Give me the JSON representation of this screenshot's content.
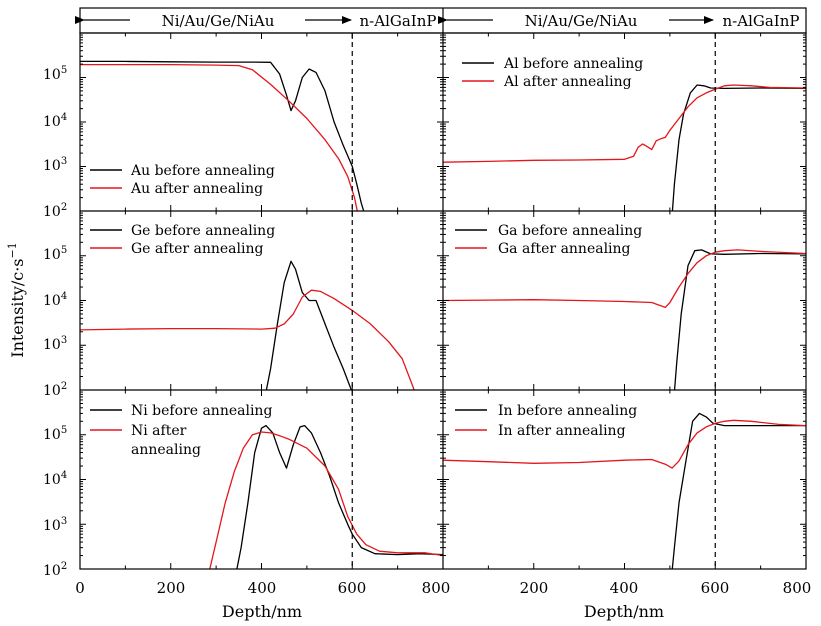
{
  "figure": {
    "ylabel": "Intensity/c·s",
    "ylabel_sup": "−1",
    "xlabel": "Depth/nm",
    "region_left": "Ni/Au/Ge/NiAu",
    "region_right": "n-AlGaInP"
  },
  "chart_data": [
    {
      "type": "line",
      "element": "Au",
      "yscale": "log",
      "xlim": [
        0,
        800
      ],
      "ylim": [
        100,
        1000000
      ],
      "legend_position": "bottom-left",
      "annotations": [
        {
          "type": "vline",
          "x": 600,
          "style": "dashed"
        }
      ],
      "series": [
        {
          "name": "Au before annealing",
          "color": "#000000",
          "points": [
            [
              0,
              230000
            ],
            [
              100,
              230000
            ],
            [
              200,
              225000
            ],
            [
              300,
              222000
            ],
            [
              380,
              222000
            ],
            [
              420,
              220000
            ],
            [
              440,
              120000
            ],
            [
              455,
              40000
            ],
            [
              465,
              18000
            ],
            [
              475,
              30000
            ],
            [
              490,
              100000
            ],
            [
              505,
              155000
            ],
            [
              520,
              130000
            ],
            [
              540,
              50000
            ],
            [
              560,
              10000
            ],
            [
              580,
              3000
            ],
            [
              600,
              1000
            ],
            [
              610,
              400
            ],
            [
              620,
              150
            ],
            [
              628,
              80
            ]
          ]
        },
        {
          "name": "Au after annealing",
          "color": "#e4161c",
          "points": [
            [
              0,
              195000
            ],
            [
              100,
              195000
            ],
            [
              200,
              195000
            ],
            [
              300,
              190000
            ],
            [
              350,
              185000
            ],
            [
              380,
              150000
            ],
            [
              420,
              70000
            ],
            [
              460,
              30000
            ],
            [
              500,
              12000
            ],
            [
              540,
              4000
            ],
            [
              570,
              1500
            ],
            [
              590,
              600
            ],
            [
              605,
              200
            ],
            [
              612,
              90
            ]
          ]
        }
      ]
    },
    {
      "type": "line",
      "element": "Al",
      "yscale": "log",
      "xlim": [
        0,
        800
      ],
      "ylim": [
        100,
        1000000
      ],
      "legend_position": "top-left",
      "annotations": [
        {
          "type": "vline",
          "x": 600,
          "style": "dashed"
        }
      ],
      "series": [
        {
          "name": "Al before annealing",
          "color": "#000000",
          "points": [
            [
              505,
              80
            ],
            [
              510,
              400
            ],
            [
              520,
              4000
            ],
            [
              530,
              15000
            ],
            [
              545,
              45000
            ],
            [
              560,
              68000
            ],
            [
              575,
              65000
            ],
            [
              590,
              58000
            ],
            [
              620,
              57000
            ],
            [
              700,
              58000
            ],
            [
              800,
              57000
            ]
          ]
        },
        {
          "name": "Al after annealing",
          "color": "#e4161c",
          "points": [
            [
              0,
              1250
            ],
            [
              100,
              1300
            ],
            [
              200,
              1380
            ],
            [
              300,
              1400
            ],
            [
              400,
              1450
            ],
            [
              420,
              1700
            ],
            [
              430,
              2700
            ],
            [
              440,
              3200
            ],
            [
              450,
              2800
            ],
            [
              460,
              2400
            ],
            [
              470,
              3800
            ],
            [
              480,
              4200
            ],
            [
              490,
              4500
            ],
            [
              500,
              6500
            ],
            [
              520,
              12000
            ],
            [
              540,
              22000
            ],
            [
              560,
              35000
            ],
            [
              580,
              45000
            ],
            [
              600,
              55000
            ],
            [
              620,
              65000
            ],
            [
              640,
              68000
            ],
            [
              680,
              65000
            ],
            [
              720,
              60000
            ],
            [
              800,
              58000
            ]
          ]
        }
      ]
    },
    {
      "type": "line",
      "element": "Ge",
      "yscale": "log",
      "xlim": [
        0,
        800
      ],
      "ylim": [
        100,
        1000000
      ],
      "legend_position": "top-left",
      "annotations": [
        {
          "type": "vline",
          "x": 600,
          "style": "dashed"
        }
      ],
      "series": [
        {
          "name": "Ge before annealing",
          "color": "#000000",
          "points": [
            [
              410,
              90
            ],
            [
              420,
              300
            ],
            [
              435,
              3000
            ],
            [
              450,
              25000
            ],
            [
              465,
              75000
            ],
            [
              475,
              50000
            ],
            [
              490,
              15000
            ],
            [
              505,
              10000
            ],
            [
              520,
              10000
            ],
            [
              540,
              3000
            ],
            [
              560,
              900
            ],
            [
              580,
              300
            ],
            [
              595,
              120
            ],
            [
              600,
              90
            ]
          ]
        },
        {
          "name": "Ge after annealing",
          "color": "#e4161c",
          "points": [
            [
              0,
              2200
            ],
            [
              100,
              2300
            ],
            [
              200,
              2350
            ],
            [
              300,
              2350
            ],
            [
              400,
              2300
            ],
            [
              430,
              2400
            ],
            [
              450,
              3000
            ],
            [
              470,
              5000
            ],
            [
              490,
              12000
            ],
            [
              510,
              17000
            ],
            [
              530,
              16000
            ],
            [
              560,
              11000
            ],
            [
              600,
              6000
            ],
            [
              640,
              3000
            ],
            [
              680,
              1200
            ],
            [
              710,
              500
            ],
            [
              730,
              150
            ],
            [
              738,
              90
            ]
          ]
        }
      ]
    },
    {
      "type": "line",
      "element": "Ga",
      "yscale": "log",
      "xlim": [
        0,
        800
      ],
      "ylim": [
        100,
        1000000
      ],
      "legend_position": "top-left",
      "annotations": [
        {
          "type": "vline",
          "x": 600,
          "style": "dashed"
        }
      ],
      "series": [
        {
          "name": "Ga before annealing",
          "color": "#000000",
          "points": [
            [
              510,
              90
            ],
            [
              515,
              400
            ],
            [
              525,
              5000
            ],
            [
              540,
              60000
            ],
            [
              555,
              130000
            ],
            [
              570,
              135000
            ],
            [
              590,
              110000
            ],
            [
              620,
              108000
            ],
            [
              700,
              112000
            ],
            [
              800,
              110000
            ]
          ]
        },
        {
          "name": "Ga after annealing",
          "color": "#e4161c",
          "points": [
            [
              0,
              10000
            ],
            [
              100,
              10200
            ],
            [
              200,
              10400
            ],
            [
              300,
              10000
            ],
            [
              400,
              9500
            ],
            [
              460,
              9000
            ],
            [
              490,
              7000
            ],
            [
              500,
              9000
            ],
            [
              520,
              20000
            ],
            [
              540,
              40000
            ],
            [
              560,
              70000
            ],
            [
              580,
              100000
            ],
            [
              600,
              120000
            ],
            [
              620,
              130000
            ],
            [
              650,
              135000
            ],
            [
              700,
              125000
            ],
            [
              800,
              112000
            ]
          ]
        }
      ]
    },
    {
      "type": "line",
      "element": "Ni",
      "yscale": "log",
      "xlim": [
        0,
        800
      ],
      "ylim": [
        100,
        1000000
      ],
      "legend_position": "top-left",
      "annotations": [
        {
          "type": "vline",
          "x": 600,
          "style": "dashed"
        }
      ],
      "series": [
        {
          "name": "Ni before annealing",
          "color": "#000000",
          "points": [
            [
              345,
              90
            ],
            [
              355,
              300
            ],
            [
              370,
              3000
            ],
            [
              385,
              40000
            ],
            [
              400,
              140000
            ],
            [
              410,
              160000
            ],
            [
              425,
              110000
            ],
            [
              440,
              40000
            ],
            [
              455,
              18000
            ],
            [
              470,
              60000
            ],
            [
              485,
              150000
            ],
            [
              495,
              160000
            ],
            [
              510,
              110000
            ],
            [
              530,
              40000
            ],
            [
              550,
              12000
            ],
            [
              570,
              3000
            ],
            [
              590,
              1000
            ],
            [
              600,
              600
            ],
            [
              620,
              300
            ],
            [
              650,
              220
            ],
            [
              700,
              210
            ],
            [
              750,
              220
            ],
            [
              800,
              210
            ]
          ]
        },
        {
          "name": "Ni after annealing",
          "color": "#e4161c",
          "points": [
            [
              285,
              90
            ],
            [
              300,
              400
            ],
            [
              320,
              3000
            ],
            [
              340,
              15000
            ],
            [
              360,
              50000
            ],
            [
              380,
              100000
            ],
            [
              400,
              115000
            ],
            [
              420,
              110000
            ],
            [
              440,
              95000
            ],
            [
              460,
              80000
            ],
            [
              500,
              50000
            ],
            [
              540,
              20000
            ],
            [
              570,
              6000
            ],
            [
              590,
              1500
            ],
            [
              610,
              600
            ],
            [
              630,
              350
            ],
            [
              660,
              250
            ],
            [
              700,
              230
            ],
            [
              760,
              230
            ],
            [
              800,
              200
            ]
          ]
        }
      ]
    },
    {
      "type": "line",
      "element": "In",
      "yscale": "log",
      "xlim": [
        0,
        800
      ],
      "ylim": [
        100,
        1000000
      ],
      "legend_position": "top-left",
      "annotations": [
        {
          "type": "vline",
          "x": 600,
          "style": "dashed"
        }
      ],
      "series": [
        {
          "name": "In before annealing",
          "color": "#000000",
          "points": [
            [
              505,
              90
            ],
            [
              510,
              300
            ],
            [
              520,
              3000
            ],
            [
              535,
              25000
            ],
            [
              550,
              200000
            ],
            [
              565,
              300000
            ],
            [
              580,
              250000
            ],
            [
              595,
              180000
            ],
            [
              620,
              160000
            ],
            [
              700,
              160000
            ],
            [
              800,
              160000
            ]
          ]
        },
        {
          "name": "In after annealing",
          "color": "#e4161c",
          "points": [
            [
              0,
              27000
            ],
            [
              100,
              25000
            ],
            [
              200,
              23000
            ],
            [
              300,
              24000
            ],
            [
              400,
              27000
            ],
            [
              460,
              28000
            ],
            [
              490,
              22000
            ],
            [
              505,
              18000
            ],
            [
              520,
              26000
            ],
            [
              540,
              60000
            ],
            [
              560,
              110000
            ],
            [
              580,
              150000
            ],
            [
              600,
              180000
            ],
            [
              620,
              200000
            ],
            [
              640,
              210000
            ],
            [
              680,
              200000
            ],
            [
              740,
              170000
            ],
            [
              800,
              160000
            ]
          ]
        }
      ]
    }
  ],
  "legend_text": {
    "au_b": "Au before annealing",
    "au_a": "Au after annealing",
    "al_b": "Al before annealing",
    "al_a": "Al after annealing",
    "ge_b": "Ge before annealing",
    "ge_a": "Ge after annealing",
    "ga_b": "Ga before annealing",
    "ga_a": "Ga after annealing",
    "ni_b": "Ni before annealing",
    "ni_a1": "Ni after",
    "ni_a2": "annealing",
    "in_b": "In before annealing",
    "in_a": "In after annealing"
  },
  "x_ticks": [
    "0",
    "200",
    "400",
    "600",
    "800"
  ]
}
